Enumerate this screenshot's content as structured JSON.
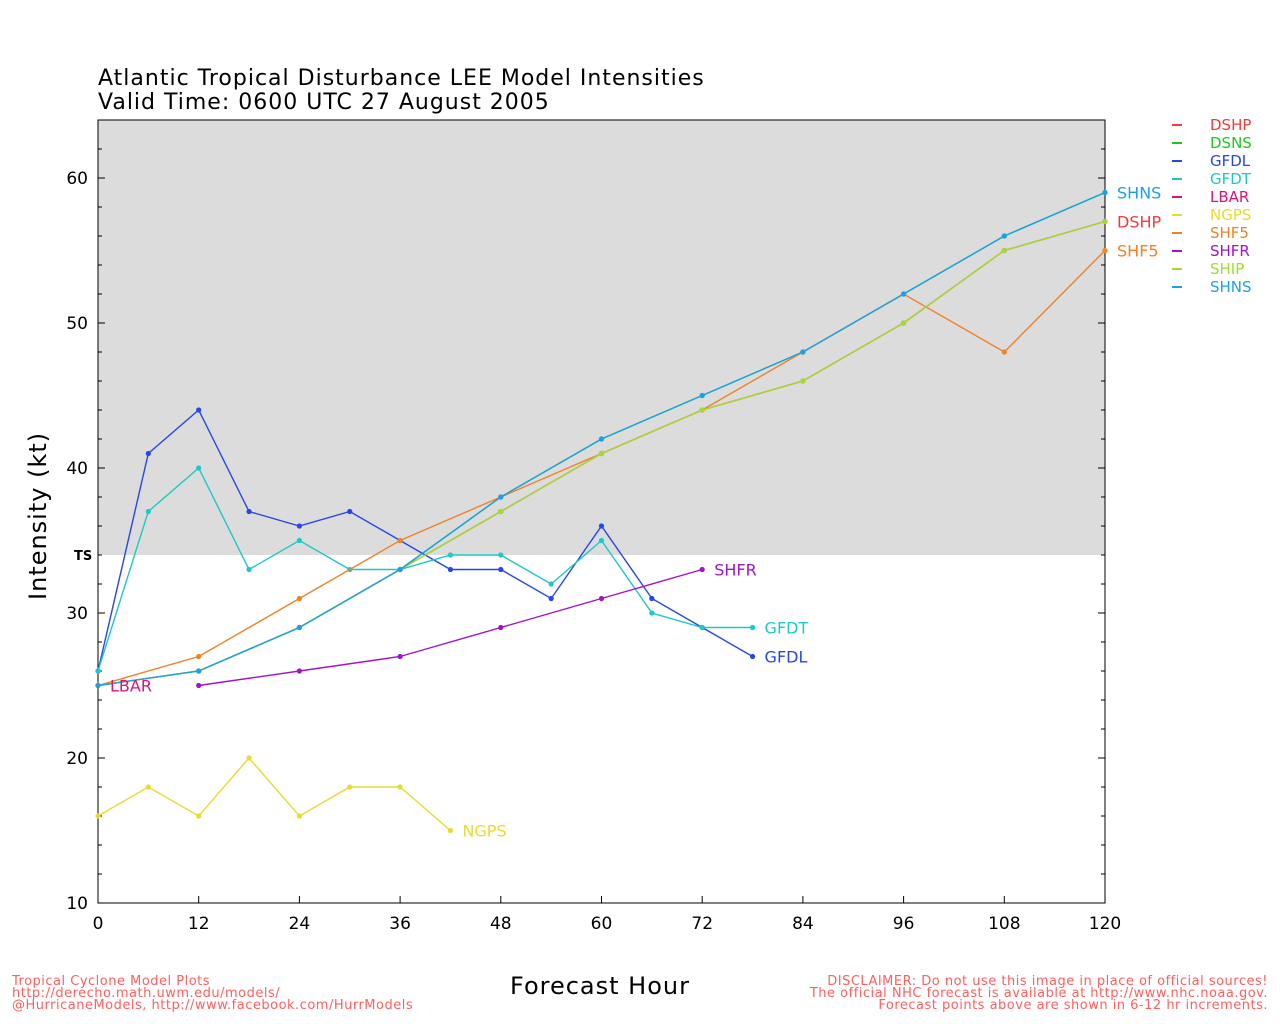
{
  "chart_data": {
    "type": "line",
    "title": "Atlantic Tropical Disturbance LEE Model Intensities",
    "subtitle": "Valid Time: 0600 UTC 27 August 2005",
    "xlabel": "Forecast Hour",
    "ylabel": "Intensity (kt)",
    "xlim": [
      0,
      120
    ],
    "ylim": [
      10,
      64
    ],
    "xticks": [
      0,
      12,
      24,
      36,
      48,
      60,
      72,
      84,
      96,
      108,
      120
    ],
    "yticks": [
      10,
      20,
      30,
      40,
      50,
      60
    ],
    "threshold": {
      "label": "TS",
      "value": 34
    },
    "series": [
      {
        "name": "DSHP",
        "color": "#f03c3c",
        "points": [
          [
            0,
            25
          ],
          [
            12,
            26
          ],
          [
            24,
            29
          ],
          [
            36,
            33
          ],
          [
            48,
            37
          ],
          [
            60,
            41
          ],
          [
            72,
            44
          ],
          [
            84,
            46
          ],
          [
            96,
            50
          ],
          [
            108,
            55
          ],
          [
            120,
            57
          ]
        ]
      },
      {
        "name": "DSNS",
        "color": "#1ec81e",
        "points": [
          [
            0,
            25
          ],
          [
            12,
            26
          ],
          [
            24,
            29
          ],
          [
            36,
            33
          ],
          [
            48,
            38
          ],
          [
            60,
            42
          ],
          [
            72,
            45
          ],
          [
            84,
            48
          ],
          [
            96,
            52
          ],
          [
            108,
            56
          ],
          [
            120,
            59
          ]
        ]
      },
      {
        "name": "GFDL",
        "color": "#2846e6",
        "points": [
          [
            0,
            26
          ],
          [
            6,
            41
          ],
          [
            12,
            44
          ],
          [
            18,
            37
          ],
          [
            24,
            36
          ],
          [
            30,
            37
          ],
          [
            36,
            35
          ],
          [
            42,
            33
          ],
          [
            48,
            33
          ],
          [
            54,
            31
          ],
          [
            60,
            36
          ],
          [
            66,
            31
          ],
          [
            72,
            29
          ],
          [
            78,
            27
          ]
        ]
      },
      {
        "name": "GFDT",
        "color": "#1ec8c8",
        "points": [
          [
            0,
            26
          ],
          [
            6,
            37
          ],
          [
            12,
            40
          ],
          [
            18,
            33
          ],
          [
            24,
            35
          ],
          [
            30,
            33
          ],
          [
            36,
            33
          ],
          [
            42,
            34
          ],
          [
            48,
            34
          ],
          [
            54,
            32
          ],
          [
            60,
            35
          ],
          [
            66,
            30
          ],
          [
            72,
            29
          ],
          [
            78,
            29
          ]
        ]
      },
      {
        "name": "LBAR",
        "color": "#dc1478",
        "points": [
          [
            0,
            25
          ]
        ]
      },
      {
        "name": "NGPS",
        "color": "#e6dc32",
        "points": [
          [
            0,
            16
          ],
          [
            6,
            18
          ],
          [
            12,
            16
          ],
          [
            18,
            20
          ],
          [
            24,
            16
          ],
          [
            30,
            18
          ],
          [
            36,
            18
          ],
          [
            42,
            15
          ]
        ]
      },
      {
        "name": "SHF5",
        "color": "#f08228",
        "points": [
          [
            0,
            25
          ],
          [
            12,
            27
          ],
          [
            24,
            31
          ],
          [
            36,
            35
          ],
          [
            48,
            38
          ],
          [
            60,
            41
          ],
          [
            72,
            44
          ],
          [
            84,
            48
          ],
          [
            96,
            52
          ],
          [
            108,
            48
          ],
          [
            120,
            55
          ]
        ]
      },
      {
        "name": "SHFR",
        "color": "#a014c8",
        "points": [
          [
            12,
            25
          ],
          [
            24,
            26
          ],
          [
            36,
            27
          ],
          [
            48,
            29
          ],
          [
            60,
            31
          ],
          [
            72,
            33
          ]
        ]
      },
      {
        "name": "SHIP",
        "color": "#a0dc32",
        "points": [
          [
            0,
            25
          ],
          [
            12,
            26
          ],
          [
            24,
            29
          ],
          [
            36,
            33
          ],
          [
            48,
            37
          ],
          [
            60,
            41
          ],
          [
            72,
            44
          ],
          [
            84,
            46
          ],
          [
            96,
            50
          ],
          [
            108,
            55
          ],
          [
            120,
            57
          ]
        ]
      },
      {
        "name": "SHNS",
        "color": "#1ea0e6",
        "points": [
          [
            0,
            25
          ],
          [
            12,
            26
          ],
          [
            24,
            29
          ],
          [
            36,
            33
          ],
          [
            48,
            38
          ],
          [
            60,
            42
          ],
          [
            72,
            45
          ],
          [
            84,
            48
          ],
          [
            96,
            52
          ],
          [
            108,
            56
          ],
          [
            120,
            59
          ]
        ]
      }
    ],
    "end_labels": [
      {
        "text": "SHNS",
        "color": "#1ea0e6",
        "x": 120,
        "y": 59
      },
      {
        "text": "DSHP",
        "color": "#f03c3c",
        "x": 120,
        "y": 57
      },
      {
        "text": "SHF5",
        "color": "#f08228",
        "x": 120,
        "y": 55
      },
      {
        "text": "SHFR",
        "color": "#a014c8",
        "x": 72,
        "y": 33
      },
      {
        "text": "GFDT",
        "color": "#1ec8c8",
        "x": 78,
        "y": 29
      },
      {
        "text": "GFDL",
        "color": "#2846e6",
        "x": 78,
        "y": 27
      },
      {
        "text": "LBAR",
        "color": "#dc1478",
        "x": 0,
        "y": 25
      },
      {
        "text": "NGPS",
        "color": "#e6dc32",
        "x": 42,
        "y": 15
      }
    ]
  },
  "footer": {
    "left": [
      "Tropical Cyclone Model Plots",
      "http://derecho.math.uwm.edu/models/",
      "@HurricaneModels, http://www.facebook.com/HurrModels"
    ],
    "right": [
      "DISCLAIMER: Do not use this image in place of official sources!",
      "The official NHC forecast is available at http://www.nhc.noaa.gov.",
      "Forecast points above are shown in 6-12 hr increments."
    ]
  }
}
